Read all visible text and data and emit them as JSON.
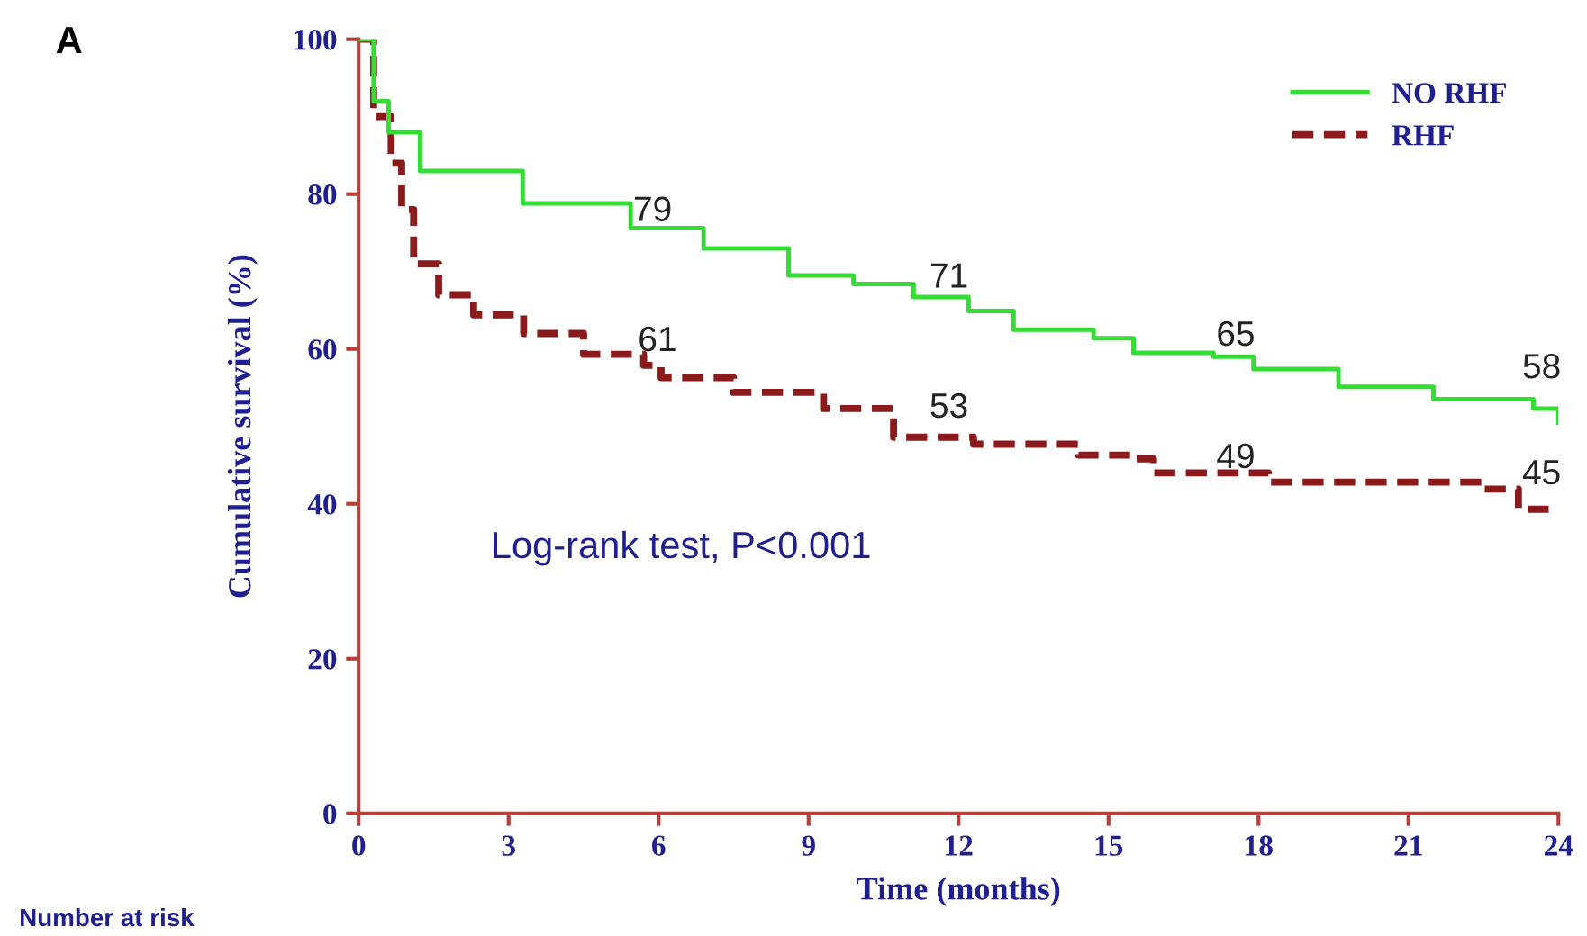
{
  "chart_data": {
    "type": "step",
    "xlabel": "Time (months)",
    "ylabel": "Cumulative survival (%)",
    "xlim": [
      0,
      24
    ],
    "xticks": [
      0,
      3,
      6,
      9,
      12,
      15,
      18,
      21,
      24
    ],
    "ylim": [
      0,
      100
    ],
    "yticks": [
      0,
      20,
      40,
      60,
      80,
      100
    ],
    "grid": false,
    "legend": "top right",
    "marker": "none",
    "series": [
      {
        "name": "NO RHF",
        "color": "#33dd33",
        "line_style": "solid",
        "x": [
          0,
          0.3,
          0.6,
          1.23,
          3.28,
          5.44,
          6.9,
          8.6,
          9.9,
          11.1,
          12.2,
          13.1,
          14.7,
          15.5,
          17.1,
          17.9,
          19.6,
          21.5,
          23.5,
          24
        ],
        "values": [
          100,
          92,
          88,
          83,
          78.8,
          75.6,
          73,
          69.5,
          68.4,
          66.7,
          64.9,
          62.5,
          61.4,
          59.5,
          59,
          57.4,
          55.1,
          53.5,
          52.3,
          50.5
        ]
      },
      {
        "name": "RHF",
        "color": "#8b1a1a",
        "line_style": "dashed",
        "x": [
          0,
          0.3,
          0.65,
          0.86,
          1.1,
          1.6,
          2.3,
          3.3,
          4.5,
          5.7,
          6.05,
          7.5,
          9.3,
          10.7,
          12.3,
          14.4,
          15.5,
          15.9,
          18.2,
          22.5,
          23.2,
          24
        ],
        "values": [
          100,
          90,
          84,
          78,
          71,
          67,
          64.4,
          62,
          59.3,
          57.9,
          56.3,
          54.4,
          52.3,
          48.6,
          47.7,
          46.3,
          45.8,
          44,
          42.8,
          41.9,
          39.3,
          39.3
        ]
      }
    ],
    "annotations": [
      "Log-rank test, P<0.001",
      "A",
      "Number at risk",
      "79",
      "71",
      "65",
      "58",
      "61",
      "53",
      "49",
      "45"
    ]
  }
}
